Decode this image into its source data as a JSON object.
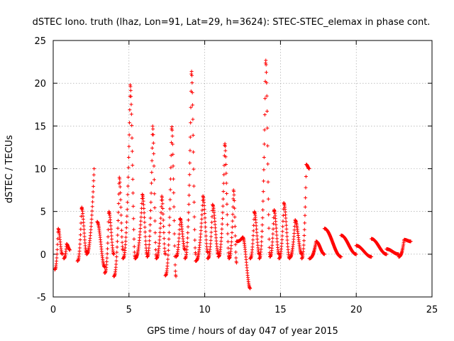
{
  "chart_data": {
    "type": "scatter",
    "title": "dSTEC Iono. truth (lhaz, Lon=91, Lat=29, h=3624): STEC-STEC_elemax in phase cont.",
    "xlabel": "GPS time / hours of day 047 of year 2015",
    "ylabel": "dSTEC  / TECUs",
    "xlim": [
      0,
      25
    ],
    "ylim": [
      -5,
      25
    ],
    "xticks": [
      0,
      5,
      10,
      15,
      20,
      25
    ],
    "yticks": [
      -5,
      0,
      5,
      10,
      15,
      20,
      25
    ],
    "xtick_labels": [
      "0",
      "5",
      "10",
      "15",
      "20",
      "25"
    ],
    "ytick_labels": [
      "-5",
      "0",
      "5",
      "10",
      "15",
      "20",
      "25"
    ],
    "grid": true,
    "marker": "+",
    "color": "#ff0000",
    "series": [
      {
        "arcs": [
          {
            "x0": 0.1,
            "x1": 0.6,
            "start": -1.8,
            "peak": 3.0,
            "end": 0.0
          },
          {
            "x0": 0.7,
            "x1": 1.1,
            "start": -0.5,
            "peak": 1.2,
            "end": 0.5
          },
          {
            "x0": 1.6,
            "x1": 2.2,
            "start": -0.8,
            "peak": 5.5,
            "end": 0.2
          },
          {
            "x0": 2.2,
            "x1": 2.7,
            "start": 0.0,
            "peak": 10.0,
            "end": 10.0
          },
          {
            "x0": 2.9,
            "x1": 3.4,
            "start": 3.8,
            "peak": 3.8,
            "end": -1.5
          },
          {
            "x0": 3.4,
            "x1": 4.0,
            "start": -2.2,
            "peak": 5.0,
            "end": 0.0
          },
          {
            "x0": 4.0,
            "x1": 4.6,
            "start": -2.6,
            "peak": 9.0,
            "end": 0.5
          },
          {
            "x0": 4.6,
            "x1": 5.4,
            "start": -0.5,
            "peak": 19.8,
            "end": -0.3
          },
          {
            "x0": 5.4,
            "x1": 6.2,
            "start": -0.5,
            "peak": 7.0,
            "end": 0.0
          },
          {
            "x0": 6.2,
            "x1": 6.8,
            "start": -0.3,
            "peak": 15.0,
            "end": -0.2
          },
          {
            "x0": 6.8,
            "x1": 7.4,
            "start": -0.5,
            "peak": 6.8,
            "end": 0.0
          },
          {
            "x0": 7.4,
            "x1": 8.1,
            "start": -2.5,
            "peak": 15.0,
            "end": -2.6
          },
          {
            "x0": 8.1,
            "x1": 8.7,
            "start": -0.3,
            "peak": 4.2,
            "end": 0.5
          },
          {
            "x0": 8.7,
            "x1": 9.4,
            "start": -0.5,
            "peak": 21.5,
            "end": 0.0
          },
          {
            "x0": 9.4,
            "x1": 10.2,
            "start": -0.8,
            "peak": 6.8,
            "end": 0.2
          },
          {
            "x0": 10.2,
            "x1": 10.9,
            "start": -0.5,
            "peak": 5.8,
            "end": 0.0
          },
          {
            "x0": 10.9,
            "x1": 11.6,
            "start": -0.3,
            "peak": 13.0,
            "end": -0.3
          },
          {
            "x0": 11.6,
            "x1": 12.1,
            "start": -0.5,
            "peak": 7.5,
            "end": -1.0
          },
          {
            "x0": 12.1,
            "x1": 13.0,
            "start": 1.5,
            "peak": 2.0,
            "end": -4.0
          },
          {
            "x0": 13.0,
            "x1": 13.6,
            "start": -0.5,
            "peak": 5.0,
            "end": 0.0
          },
          {
            "x0": 13.6,
            "x1": 14.3,
            "start": -0.5,
            "peak": 22.8,
            "end": 0.0
          },
          {
            "x0": 14.3,
            "x1": 14.9,
            "start": -0.3,
            "peak": 5.2,
            "end": 0.0
          },
          {
            "x0": 14.9,
            "x1": 15.6,
            "start": -0.5,
            "peak": 6.0,
            "end": -0.5
          },
          {
            "x0": 15.6,
            "x1": 16.4,
            "start": -0.4,
            "peak": 4.0,
            "end": 0.0
          },
          {
            "x0": 16.4,
            "x1": 16.9,
            "start": -0.5,
            "peak": 10.5,
            "end": 10.0
          },
          {
            "x0": 16.9,
            "x1": 17.9,
            "start": -0.5,
            "peak": 1.5,
            "end": 0.0
          },
          {
            "x0": 17.9,
            "x1": 19.0,
            "start": 3.0,
            "peak": 3.0,
            "end": -0.3
          },
          {
            "x0": 19.0,
            "x1": 20.0,
            "start": 2.2,
            "peak": 2.2,
            "end": 0.0
          },
          {
            "x0": 20.0,
            "x1": 21.0,
            "start": 1.0,
            "peak": 1.0,
            "end": -0.3
          },
          {
            "x0": 21.0,
            "x1": 22.0,
            "start": 1.8,
            "peak": 1.8,
            "end": 0.0
          },
          {
            "x0": 22.0,
            "x1": 22.8,
            "start": 0.6,
            "peak": 0.6,
            "end": 0.0
          },
          {
            "x0": 22.8,
            "x1": 23.6,
            "start": -0.3,
            "peak": 1.7,
            "end": 1.5
          }
        ]
      }
    ]
  }
}
